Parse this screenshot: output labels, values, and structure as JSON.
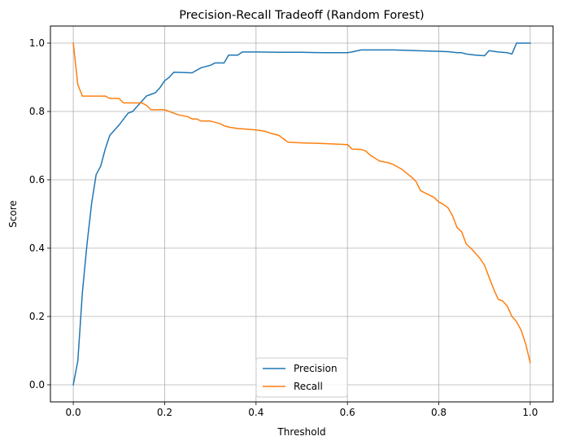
{
  "chart_data": {
    "type": "line",
    "title": "Precision-Recall Tradeoff (Random Forest)",
    "xlabel": "Threshold",
    "ylabel": "Score",
    "xlim": [
      -0.05,
      1.05
    ],
    "ylim": [
      -0.05,
      1.05
    ],
    "xticks": [
      0.0,
      0.2,
      0.4,
      0.6,
      0.8,
      1.0
    ],
    "xtick_labels": [
      "0.0",
      "0.2",
      "0.4",
      "0.6",
      "0.8",
      "1.0"
    ],
    "yticks": [
      0.0,
      0.2,
      0.4,
      0.6,
      0.8,
      1.0
    ],
    "ytick_labels": [
      "0.0",
      "0.2",
      "0.4",
      "0.6",
      "0.8",
      "1.0"
    ],
    "grid": true,
    "legend_position": "bottom-center",
    "series": [
      {
        "name": "Precision",
        "color": "#1f77b4",
        "x": [
          0.0,
          0.01,
          0.02,
          0.03,
          0.04,
          0.05,
          0.06,
          0.07,
          0.08,
          0.1,
          0.12,
          0.13,
          0.14,
          0.15,
          0.16,
          0.17,
          0.18,
          0.19,
          0.2,
          0.21,
          0.22,
          0.24,
          0.26,
          0.28,
          0.3,
          0.31,
          0.33,
          0.34,
          0.36,
          0.37,
          0.4,
          0.45,
          0.5,
          0.55,
          0.6,
          0.61,
          0.63,
          0.7,
          0.75,
          0.8,
          0.82,
          0.84,
          0.85,
          0.86,
          0.88,
          0.9,
          0.91,
          0.93,
          0.95,
          0.96,
          0.97,
          1.0
        ],
        "y": [
          0.0,
          0.07,
          0.27,
          0.41,
          0.53,
          0.615,
          0.64,
          0.69,
          0.73,
          0.76,
          0.795,
          0.8,
          0.815,
          0.83,
          0.845,
          0.85,
          0.855,
          0.87,
          0.89,
          0.9,
          0.915,
          0.914,
          0.913,
          0.928,
          0.935,
          0.942,
          0.942,
          0.965,
          0.965,
          0.974,
          0.974,
          0.973,
          0.973,
          0.972,
          0.972,
          0.974,
          0.98,
          0.98,
          0.978,
          0.976,
          0.975,
          0.972,
          0.972,
          0.968,
          0.965,
          0.963,
          0.978,
          0.974,
          0.972,
          0.968,
          1.0,
          1.0
        ]
      },
      {
        "name": "Recall",
        "color": "#ff7f0e",
        "x": [
          0.0,
          0.01,
          0.02,
          0.03,
          0.07,
          0.08,
          0.1,
          0.11,
          0.15,
          0.16,
          0.17,
          0.2,
          0.21,
          0.22,
          0.23,
          0.25,
          0.26,
          0.27,
          0.28,
          0.3,
          0.32,
          0.33,
          0.34,
          0.36,
          0.38,
          0.4,
          0.42,
          0.43,
          0.45,
          0.46,
          0.47,
          0.5,
          0.55,
          0.6,
          0.61,
          0.63,
          0.64,
          0.65,
          0.67,
          0.69,
          0.7,
          0.72,
          0.74,
          0.75,
          0.76,
          0.78,
          0.79,
          0.8,
          0.81,
          0.82,
          0.83,
          0.84,
          0.85,
          0.86,
          0.87,
          0.88,
          0.89,
          0.9,
          0.91,
          0.92,
          0.93,
          0.94,
          0.95,
          0.96,
          0.97,
          0.98,
          0.99,
          1.0
        ],
        "y": [
          1.0,
          0.878,
          0.845,
          0.845,
          0.845,
          0.838,
          0.838,
          0.825,
          0.825,
          0.818,
          0.805,
          0.805,
          0.8,
          0.795,
          0.79,
          0.785,
          0.778,
          0.778,
          0.772,
          0.772,
          0.765,
          0.758,
          0.754,
          0.75,
          0.748,
          0.746,
          0.742,
          0.737,
          0.73,
          0.72,
          0.71,
          0.708,
          0.706,
          0.703,
          0.69,
          0.689,
          0.684,
          0.672,
          0.655,
          0.65,
          0.645,
          0.63,
          0.608,
          0.595,
          0.568,
          0.555,
          0.548,
          0.535,
          0.528,
          0.518,
          0.495,
          0.46,
          0.448,
          0.412,
          0.4,
          0.385,
          0.37,
          0.35,
          0.315,
          0.28,
          0.25,
          0.245,
          0.23,
          0.2,
          0.185,
          0.16,
          0.12,
          0.065
        ]
      }
    ]
  }
}
